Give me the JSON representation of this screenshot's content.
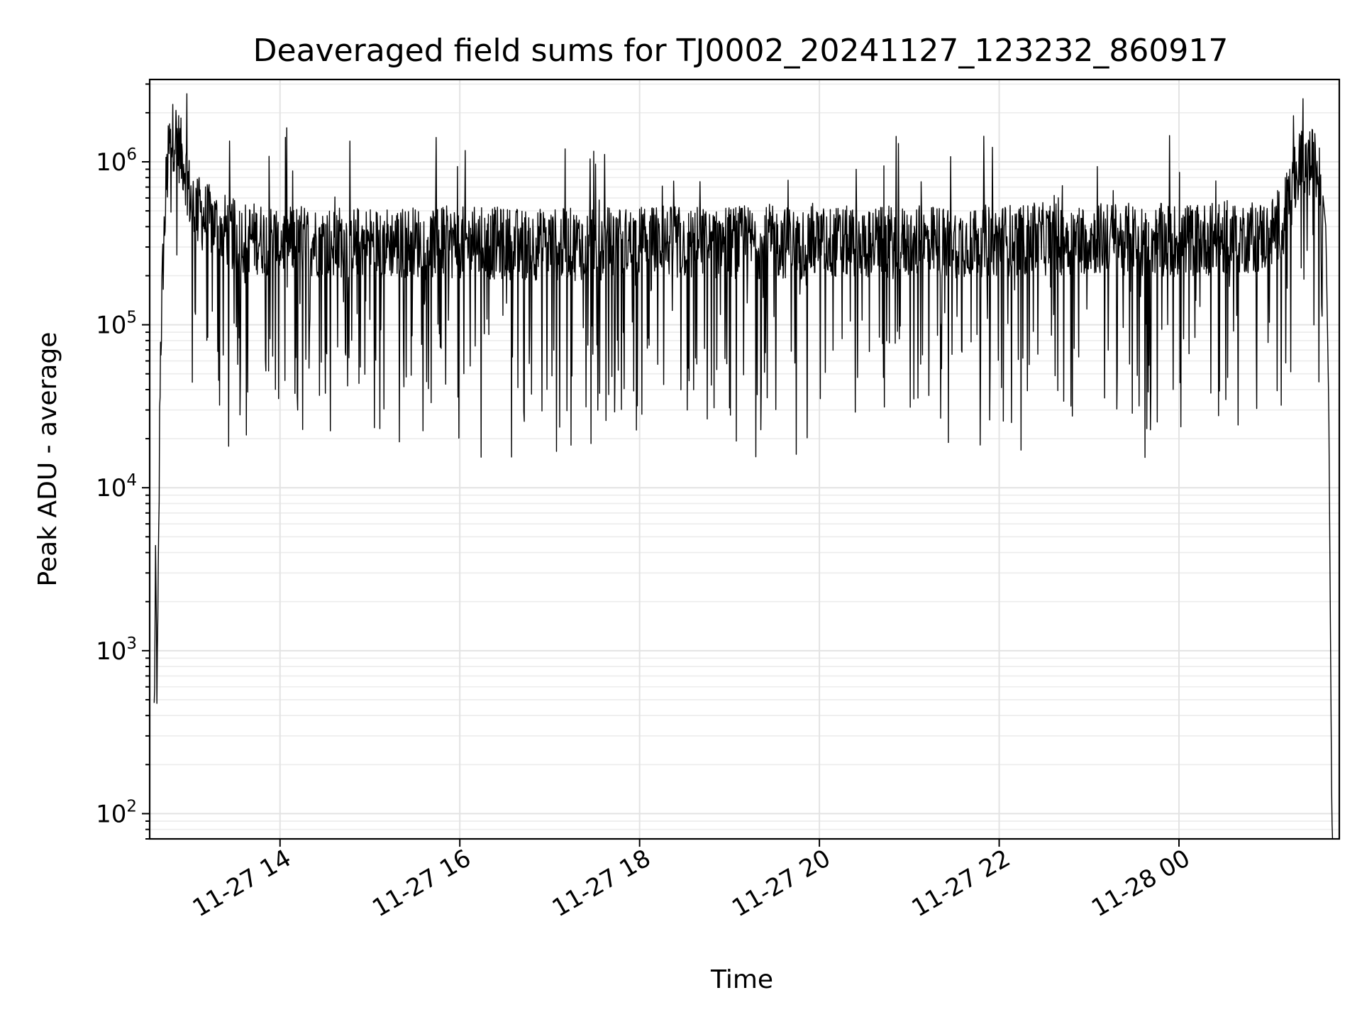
{
  "chart_data": {
    "type": "line",
    "title": "Deaveraged field sums for TJ0002_20241127_123232_860917",
    "xlabel": "Time",
    "ylabel": "Peak ADU - average",
    "yscale": "log",
    "xlim": [
      "2024-11-27 12:33",
      "2024-11-28 01:47"
    ],
    "ylim": [
      70,
      3200000
    ],
    "grid": true,
    "x_ticks": [
      {
        "value": "2024-11-27 14:00",
        "label": "11-27 14"
      },
      {
        "value": "2024-11-27 16:00",
        "label": "11-27 16"
      },
      {
        "value": "2024-11-27 18:00",
        "label": "11-27 18"
      },
      {
        "value": "2024-11-27 20:00",
        "label": "11-27 20"
      },
      {
        "value": "2024-11-27 22:00",
        "label": "11-27 22"
      },
      {
        "value": "2024-11-28 00:00",
        "label": "11-28 00"
      }
    ],
    "y_ticks": [
      {
        "value": 100,
        "base": "10",
        "exp": "2"
      },
      {
        "value": 1000,
        "base": "10",
        "exp": "3"
      },
      {
        "value": 10000,
        "base": "10",
        "exp": "4"
      },
      {
        "value": 100000,
        "base": "10",
        "exp": "5"
      },
      {
        "value": 1000000,
        "base": "10",
        "exp": "6"
      }
    ],
    "series": [
      {
        "color": "#000000",
        "x": [
          "2024-11-27 12:36",
          "2024-11-27 12:37",
          "2024-11-27 12:38",
          "2024-11-27 12:39",
          "2024-11-27 12:40",
          "2024-11-27 12:42",
          "2024-11-27 12:44",
          "2024-11-27 12:46",
          "2024-11-27 12:48",
          "2024-11-27 12:50",
          "2024-11-27 12:52",
          "2024-11-27 12:54",
          "2024-11-27 12:56",
          "2024-11-27 12:58",
          "2024-11-27 13:00",
          "2024-11-27 13:05",
          "2024-11-27 13:10",
          "2024-11-27 13:20",
          "2024-11-27 13:30",
          "2024-11-27 14:00",
          "2024-11-27 15:00",
          "2024-11-27 16:00",
          "2024-11-27 17:00",
          "2024-11-27 18:00",
          "2024-11-27 19:00",
          "2024-11-27 20:00",
          "2024-11-27 21:00",
          "2024-11-27 22:00",
          "2024-11-27 23:00",
          "2024-11-28 00:00",
          "2024-11-28 01:00",
          "2024-11-28 01:10",
          "2024-11-28 01:15",
          "2024-11-28 01:20",
          "2024-11-28 01:25",
          "2024-11-28 01:30",
          "2024-11-28 01:35",
          "2024-11-28 01:38",
          "2024-11-28 01:40",
          "2024-11-28 01:42",
          "2024-11-28 01:44"
        ],
        "values": [
          400,
          3000,
          500,
          4000,
          60000,
          250000,
          700000,
          1200000,
          1400000,
          1500000,
          1300000,
          1100000,
          1000000,
          800000,
          600000,
          500000,
          450000,
          400000,
          350000,
          330000,
          320000,
          320000,
          310000,
          320000,
          320000,
          320000,
          320000,
          330000,
          340000,
          330000,
          350000,
          450000,
          650000,
          900000,
          1000000,
          950000,
          800000,
          400000,
          30000,
          100,
          20
        ]
      }
    ]
  }
}
